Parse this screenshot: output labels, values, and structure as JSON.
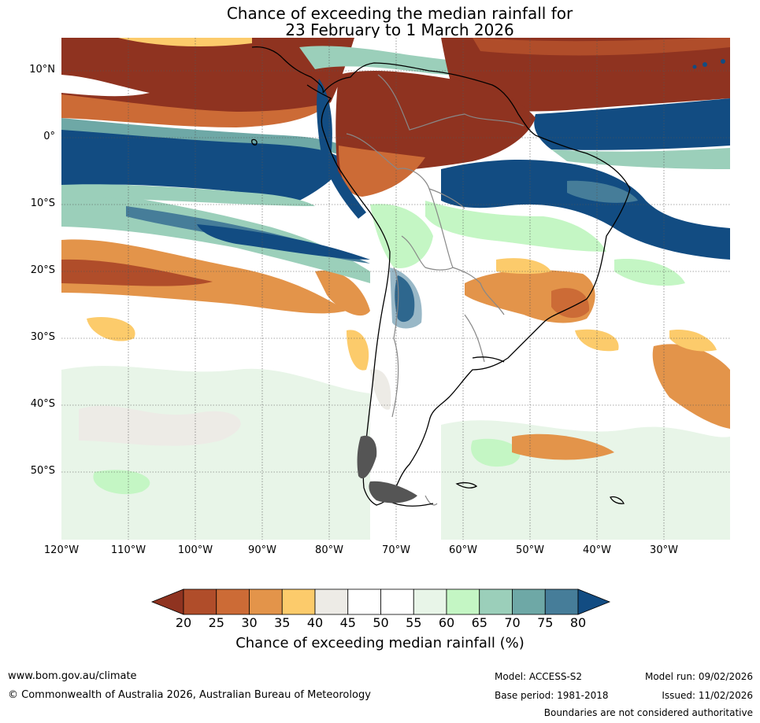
{
  "title": {
    "line1": "Chance of exceeding the median rainfall for",
    "line2": "23 February to 1 March 2026"
  },
  "map": {
    "lat_labels": [
      "10°N",
      "0°",
      "10°S",
      "20°S",
      "30°S",
      "40°S",
      "50°S"
    ],
    "lon_labels": [
      "120°W",
      "110°W",
      "100°W",
      "90°W",
      "80°W",
      "70°W",
      "60°W",
      "50°W",
      "40°W",
      "30°W"
    ],
    "lon_range": [
      -120,
      -20
    ],
    "lat_range": [
      -60,
      15
    ]
  },
  "colorbar": {
    "ticks": [
      "20",
      "25",
      "30",
      "35",
      "40",
      "45",
      "50",
      "55",
      "60",
      "65",
      "70",
      "75",
      "80"
    ],
    "colors": [
      "#8f3320",
      "#b04d2a",
      "#cc6b36",
      "#e3944a",
      "#fccb6b",
      "#edebe6",
      "#ffffff",
      "#ffffff",
      "#e8f5e8",
      "#c4f6c4",
      "#9bcfba",
      "#6ea8a6",
      "#467d99",
      "#124c82"
    ],
    "title": "Chance of exceeding median rainfall (%)"
  },
  "footer": {
    "url": "www.bom.gov.au/climate",
    "copyright": "© Commonwealth of Australia 2026, Australian Bureau of Meteorology",
    "model": "Model: ACCESS-S2",
    "base_period": "Base period: 1981-2018",
    "model_run": "Model run: 09/02/2026",
    "issued": "Issued: 11/02/2026",
    "disclaimer": "Boundaries are not considered authoritative"
  }
}
